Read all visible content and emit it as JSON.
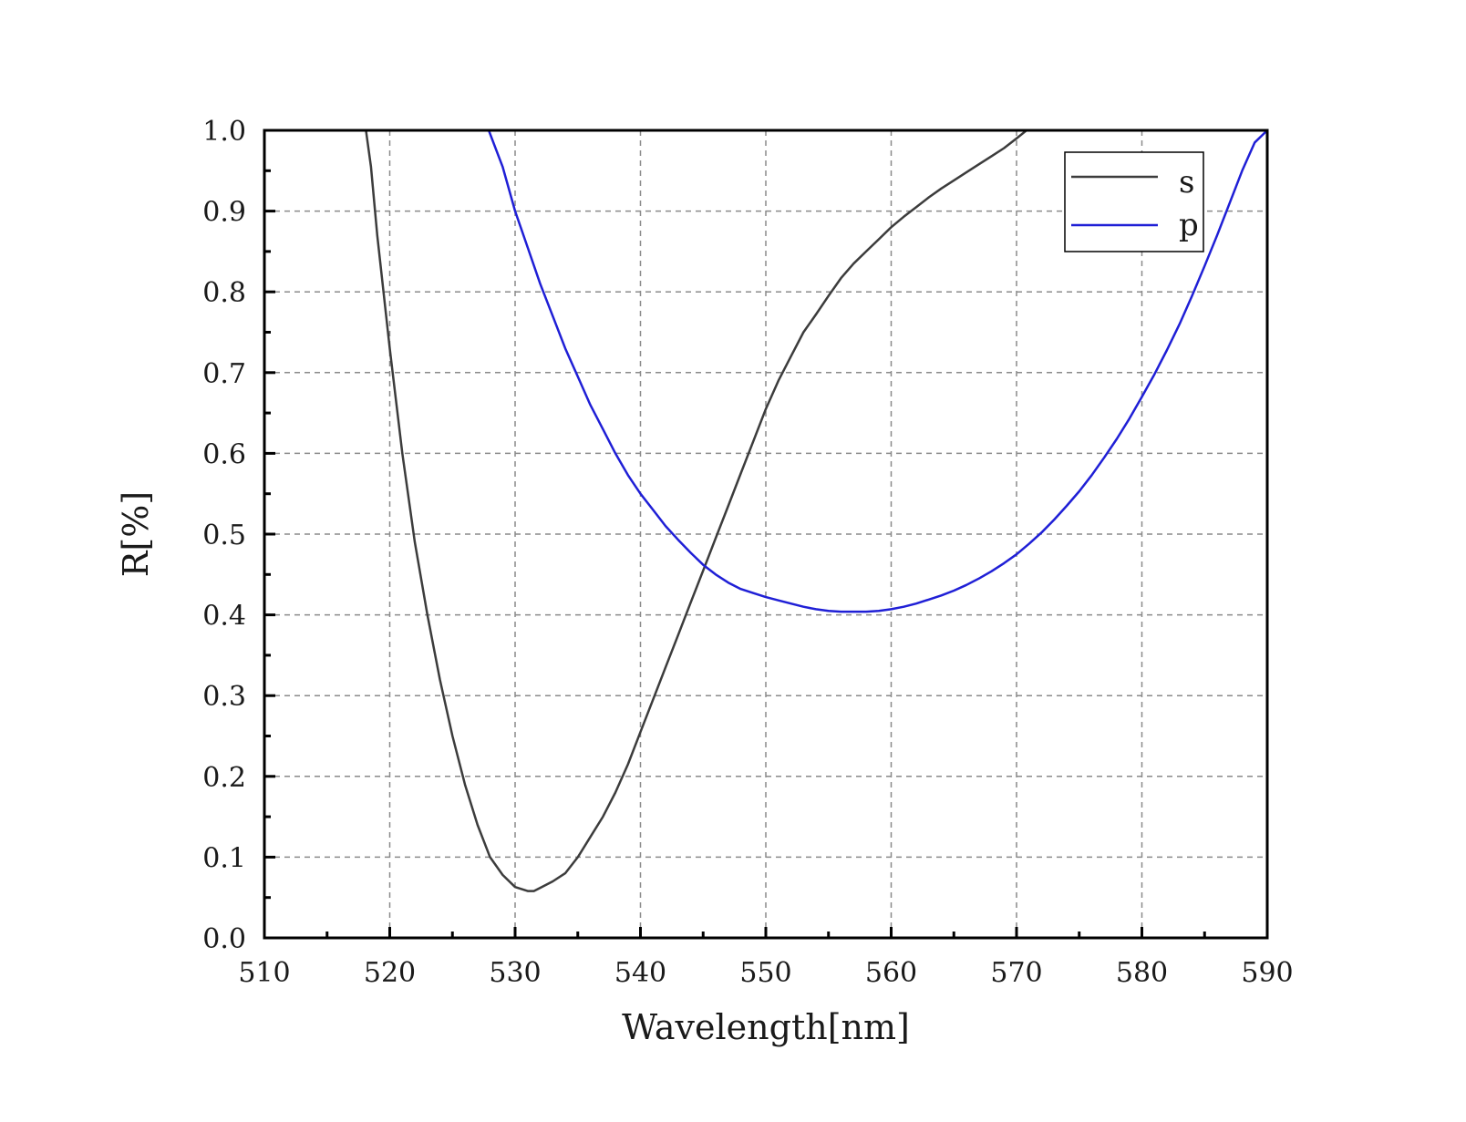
{
  "chart_data": {
    "type": "line",
    "title": "",
    "xlabel": "Wavelength[nm]",
    "ylabel": "R[%]",
    "xlim": [
      510,
      590
    ],
    "ylim": [
      0,
      1.0
    ],
    "x_ticks": [
      510,
      520,
      530,
      540,
      550,
      560,
      570,
      580,
      590
    ],
    "x_tick_labels": [
      "510",
      "520",
      "530",
      "540",
      "550",
      "560",
      "570",
      "580",
      "590"
    ],
    "y_ticks": [
      0.0,
      0.1,
      0.2,
      0.3,
      0.4,
      0.5,
      0.6,
      0.7,
      0.8,
      0.9,
      1.0
    ],
    "y_tick_labels": [
      "0.0",
      "0.1",
      "0.2",
      "0.3",
      "0.4",
      "0.5",
      "0.6",
      "0.7",
      "0.8",
      "0.9",
      "1.0"
    ],
    "grid": true,
    "legend_position": "top-right",
    "series": [
      {
        "name": "s",
        "color": "#3c3c3c",
        "x": [
          518.1,
          518.5,
          519.0,
          520.0,
          521.0,
          522.0,
          523.0,
          524.0,
          525.0,
          526.0,
          527.0,
          528.0,
          529.0,
          530.0,
          531.0,
          531.5,
          532.0,
          533.0,
          534.0,
          535.0,
          536.0,
          537.0,
          538.0,
          539.0,
          540.0,
          541.0,
          542.0,
          543.0,
          544.0,
          545.0,
          546.0,
          547.0,
          548.0,
          549.0,
          550.0,
          551.0,
          552.0,
          553.0,
          554.0,
          555.0,
          556.0,
          557.0,
          558.0,
          559.0,
          560.0,
          561.0,
          562.0,
          563.0,
          564.0,
          565.0,
          566.0,
          567.0,
          568.0,
          569.0,
          570.0,
          570.8
        ],
        "values": [
          1.0,
          0.955,
          0.87,
          0.73,
          0.6,
          0.49,
          0.4,
          0.32,
          0.25,
          0.19,
          0.14,
          0.1,
          0.078,
          0.063,
          0.058,
          0.058,
          0.062,
          0.07,
          0.08,
          0.1,
          0.125,
          0.15,
          0.18,
          0.215,
          0.255,
          0.295,
          0.335,
          0.375,
          0.415,
          0.455,
          0.495,
          0.535,
          0.575,
          0.615,
          0.655,
          0.69,
          0.72,
          0.75,
          0.772,
          0.795,
          0.817,
          0.835,
          0.85,
          0.865,
          0.88,
          0.893,
          0.905,
          0.917,
          0.928,
          0.938,
          0.948,
          0.958,
          0.968,
          0.978,
          0.99,
          1.0
        ]
      },
      {
        "name": "p",
        "color": "#1f1fd6",
        "x": [
          527.9,
          529.0,
          530.0,
          531.0,
          532.0,
          533.0,
          534.0,
          535.0,
          536.0,
          537.0,
          538.0,
          539.0,
          540.0,
          541.0,
          542.0,
          543.0,
          544.0,
          545.0,
          546.0,
          547.0,
          548.0,
          549.0,
          550.0,
          551.0,
          552.0,
          553.0,
          554.0,
          555.0,
          556.0,
          557.0,
          558.0,
          559.0,
          560.0,
          561.0,
          562.0,
          563.0,
          564.0,
          565.0,
          566.0,
          567.0,
          568.0,
          569.0,
          570.0,
          571.0,
          572.0,
          573.0,
          574.0,
          575.0,
          576.0,
          577.0,
          578.0,
          579.0,
          580.0,
          581.0,
          582.0,
          583.0,
          584.0,
          585.0,
          586.0,
          587.0,
          588.0,
          589.0,
          590.0
        ],
        "values": [
          1.0,
          0.955,
          0.9,
          0.855,
          0.81,
          0.77,
          0.73,
          0.695,
          0.66,
          0.63,
          0.6,
          0.573,
          0.55,
          0.53,
          0.51,
          0.493,
          0.477,
          0.462,
          0.45,
          0.44,
          0.432,
          0.427,
          0.422,
          0.418,
          0.414,
          0.41,
          0.407,
          0.405,
          0.404,
          0.404,
          0.404,
          0.405,
          0.407,
          0.41,
          0.414,
          0.419,
          0.424,
          0.43,
          0.437,
          0.445,
          0.454,
          0.464,
          0.475,
          0.488,
          0.502,
          0.518,
          0.535,
          0.553,
          0.573,
          0.595,
          0.618,
          0.643,
          0.67,
          0.698,
          0.728,
          0.76,
          0.795,
          0.832,
          0.87,
          0.91,
          0.95,
          0.985,
          1.0
        ]
      }
    ]
  }
}
